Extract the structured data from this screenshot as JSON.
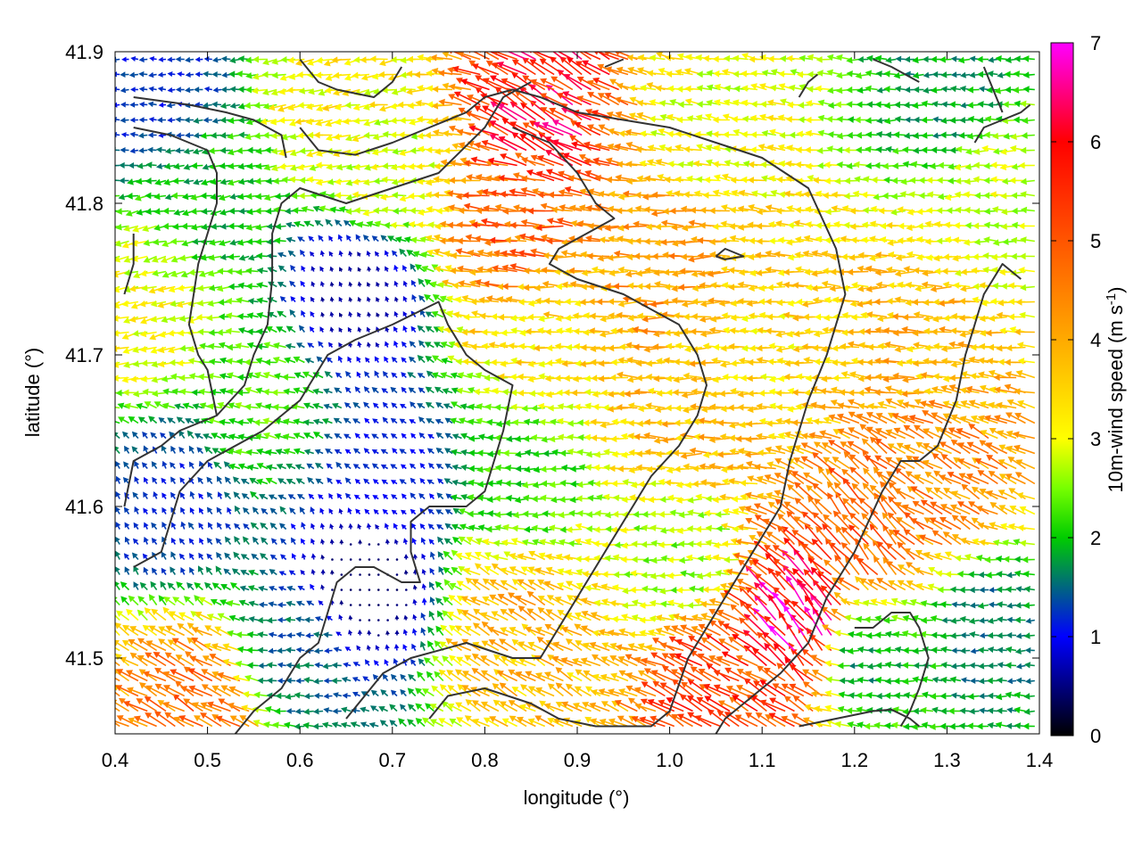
{
  "chart_data": {
    "type": "quiver",
    "xlabel": "longitude (°)",
    "ylabel": "latitude (°)",
    "colorbar_label": "10m-wind speed (m s",
    "colorbar_label_sup": "-1",
    "colorbar_label_end": ")",
    "xlim": [
      0.4,
      1.4
    ],
    "ylim": [
      41.45,
      41.9
    ],
    "x_ticks": [
      {
        "value": 0.4,
        "label": "0.4"
      },
      {
        "value": 0.5,
        "label": "0.5"
      },
      {
        "value": 0.6,
        "label": "0.6"
      },
      {
        "value": 0.7,
        "label": "0.7"
      },
      {
        "value": 0.8,
        "label": "0.8"
      },
      {
        "value": 0.9,
        "label": "0.9"
      },
      {
        "value": 1.0,
        "label": "1.0"
      },
      {
        "value": 1.1,
        "label": "1.1"
      },
      {
        "value": 1.2,
        "label": "1.2"
      },
      {
        "value": 1.3,
        "label": "1.3"
      },
      {
        "value": 1.4,
        "label": "1.4"
      }
    ],
    "y_ticks": [
      {
        "value": 41.5,
        "label": "41.5"
      },
      {
        "value": 41.6,
        "label": "41.6"
      },
      {
        "value": 41.7,
        "label": "41.7"
      },
      {
        "value": 41.8,
        "label": "41.8"
      },
      {
        "value": 41.9,
        "label": "41.9"
      }
    ],
    "colorbar": {
      "min": 0,
      "max": 7,
      "ticks": [
        {
          "value": 0,
          "label": "0"
        },
        {
          "value": 1,
          "label": "1"
        },
        {
          "value": 2,
          "label": "2"
        },
        {
          "value": 3,
          "label": "3"
        },
        {
          "value": 4,
          "label": "4"
        },
        {
          "value": 5,
          "label": "5"
        },
        {
          "value": 6,
          "label": "6"
        },
        {
          "value": 7,
          "label": "7"
        }
      ],
      "stops": [
        {
          "value": 0,
          "color": "#000000"
        },
        {
          "value": 1,
          "color": "#0000ff"
        },
        {
          "value": 2,
          "color": "#00cc00"
        },
        {
          "value": 2.5,
          "color": "#77ff00"
        },
        {
          "value": 3,
          "color": "#ffff00"
        },
        {
          "value": 4,
          "color": "#ffaa00"
        },
        {
          "value": 5,
          "color": "#ff5500"
        },
        {
          "value": 6,
          "color": "#ff0000"
        },
        {
          "value": 7,
          "color": "#ff00ff"
        }
      ]
    },
    "wind_field_grid": {
      "lon_start": 0.405,
      "lon_end": 1.395,
      "lon_step": 0.01,
      "lat_start": 41.455,
      "lat_end": 41.895,
      "lat_step": 0.01
    },
    "wind_regions": [
      {
        "lon": 0.44,
        "lat": 41.73,
        "speed": 3.0,
        "direction_deg": 195
      },
      {
        "lon": 0.45,
        "lat": 41.88,
        "speed": 1.2,
        "direction_deg": 180
      },
      {
        "lon": 0.52,
        "lat": 41.8,
        "speed": 2.0,
        "direction_deg": 190
      },
      {
        "lon": 0.47,
        "lat": 41.6,
        "speed": 1.2,
        "direction_deg": 120
      },
      {
        "lon": 0.56,
        "lat": 41.67,
        "speed": 2.3,
        "direction_deg": 170
      },
      {
        "lon": 0.65,
        "lat": 41.86,
        "speed": 3.2,
        "direction_deg": 190
      },
      {
        "lon": 0.7,
        "lat": 41.82,
        "speed": 2.8,
        "direction_deg": 185
      },
      {
        "lon": 0.66,
        "lat": 41.74,
        "speed": 0.6,
        "direction_deg": 110
      },
      {
        "lon": 0.7,
        "lat": 41.62,
        "speed": 1.1,
        "direction_deg": 140
      },
      {
        "lon": 0.67,
        "lat": 41.55,
        "speed": 0.4,
        "direction_deg": 90
      },
      {
        "lon": 0.6,
        "lat": 41.5,
        "speed": 1.5,
        "direction_deg": 180
      },
      {
        "lon": 0.5,
        "lat": 41.465,
        "speed": 4.6,
        "direction_deg": 150
      },
      {
        "lon": 0.87,
        "lat": 41.86,
        "speed": 5.8,
        "direction_deg": 150
      },
      {
        "lon": 0.85,
        "lat": 41.78,
        "speed": 4.8,
        "direction_deg": 175
      },
      {
        "lon": 0.88,
        "lat": 41.72,
        "speed": 3.4,
        "direction_deg": 180
      },
      {
        "lon": 0.85,
        "lat": 41.62,
        "speed": 2.2,
        "direction_deg": 180
      },
      {
        "lon": 0.84,
        "lat": 41.52,
        "speed": 3.8,
        "direction_deg": 150
      },
      {
        "lon": 1.0,
        "lat": 41.76,
        "speed": 4.2,
        "direction_deg": 180
      },
      {
        "lon": 1.03,
        "lat": 41.66,
        "speed": 3.8,
        "direction_deg": 180
      },
      {
        "lon": 1.05,
        "lat": 41.85,
        "speed": 3.0,
        "direction_deg": 170
      },
      {
        "lon": 1.12,
        "lat": 41.7,
        "speed": 3.4,
        "direction_deg": 180
      },
      {
        "lon": 1.02,
        "lat": 41.57,
        "speed": 2.6,
        "direction_deg": 180
      },
      {
        "lon": 1.15,
        "lat": 41.52,
        "speed": 6.4,
        "direction_deg": 130
      },
      {
        "lon": 1.07,
        "lat": 41.48,
        "speed": 5.2,
        "direction_deg": 150
      },
      {
        "lon": 1.22,
        "lat": 41.58,
        "speed": 4.8,
        "direction_deg": 130
      },
      {
        "lon": 1.3,
        "lat": 41.61,
        "speed": 4.4,
        "direction_deg": 150
      },
      {
        "lon": 1.22,
        "lat": 41.5,
        "speed": 1.8,
        "direction_deg": 180
      },
      {
        "lon": 1.28,
        "lat": 41.72,
        "speed": 3.8,
        "direction_deg": 180
      },
      {
        "lon": 1.35,
        "lat": 41.8,
        "speed": 2.8,
        "direction_deg": 180
      },
      {
        "lon": 1.3,
        "lat": 41.87,
        "speed": 1.8,
        "direction_deg": 180
      },
      {
        "lon": 1.35,
        "lat": 41.52,
        "speed": 1.6,
        "direction_deg": 180
      }
    ],
    "contours": [
      [
        [
          0.42,
          41.87
        ],
        [
          0.48,
          41.865
        ],
        [
          0.52,
          41.86
        ],
        [
          0.55,
          41.855
        ],
        [
          0.58,
          41.845
        ],
        [
          0.585,
          41.83
        ]
      ],
      [
        [
          0.42,
          41.85
        ],
        [
          0.46,
          41.845
        ],
        [
          0.5,
          41.835
        ],
        [
          0.51,
          41.82
        ],
        [
          0.51,
          41.8
        ],
        [
          0.5,
          41.78
        ],
        [
          0.49,
          41.76
        ],
        [
          0.485,
          41.74
        ],
        [
          0.48,
          41.72
        ],
        [
          0.49,
          41.7
        ],
        [
          0.5,
          41.69
        ],
        [
          0.51,
          41.66
        ]
      ],
      [
        [
          0.41,
          41.6
        ],
        [
          0.42,
          41.63
        ],
        [
          0.45,
          41.64
        ],
        [
          0.47,
          41.65
        ],
        [
          0.51,
          41.66
        ],
        [
          0.54,
          41.68
        ],
        [
          0.55,
          41.7
        ],
        [
          0.565,
          41.72
        ],
        [
          0.57,
          41.75
        ],
        [
          0.57,
          41.78
        ],
        [
          0.58,
          41.8
        ],
        [
          0.6,
          41.81
        ],
        [
          0.65,
          41.8
        ],
        [
          0.7,
          41.81
        ],
        [
          0.75,
          41.82
        ],
        [
          0.8,
          41.85
        ],
        [
          0.82,
          41.87
        ],
        [
          0.85,
          41.88
        ]
      ],
      [
        [
          0.41,
          41.74
        ],
        [
          0.42,
          41.76
        ],
        [
          0.42,
          41.78
        ]
      ],
      [
        [
          0.42,
          41.56
        ],
        [
          0.45,
          41.57
        ],
        [
          0.47,
          41.61
        ],
        [
          0.5,
          41.63
        ],
        [
          0.56,
          41.65
        ],
        [
          0.6,
          41.67
        ],
        [
          0.63,
          41.7
        ],
        [
          0.66,
          41.71
        ],
        [
          0.7,
          41.72
        ],
        [
          0.75,
          41.735
        ],
        [
          0.76,
          41.72
        ],
        [
          0.78,
          41.7
        ],
        [
          0.8,
          41.69
        ],
        [
          0.83,
          41.68
        ],
        [
          0.82,
          41.65
        ],
        [
          0.8,
          41.61
        ],
        [
          0.78,
          41.6
        ],
        [
          0.74,
          41.6
        ],
        [
          0.72,
          41.59
        ],
        [
          0.72,
          41.57
        ],
        [
          0.73,
          41.55
        ],
        [
          0.71,
          41.55
        ],
        [
          0.68,
          41.56
        ],
        [
          0.66,
          41.56
        ],
        [
          0.64,
          41.55
        ],
        [
          0.63,
          41.53
        ],
        [
          0.62,
          41.51
        ],
        [
          0.6,
          41.5
        ],
        [
          0.58,
          41.48
        ],
        [
          0.55,
          41.465
        ],
        [
          0.53,
          41.45
        ]
      ],
      [
        [
          0.6,
          41.895
        ],
        [
          0.62,
          41.88
        ],
        [
          0.64,
          41.875
        ],
        [
          0.68,
          41.87
        ],
        [
          0.7,
          41.88
        ],
        [
          0.71,
          41.89
        ]
      ],
      [
        [
          0.6,
          41.85
        ],
        [
          0.62,
          41.835
        ],
        [
          0.66,
          41.832
        ],
        [
          0.7,
          41.84
        ],
        [
          0.74,
          41.85
        ],
        [
          0.78,
          41.86
        ],
        [
          0.8,
          41.87
        ],
        [
          0.83,
          41.875
        ],
        [
          0.86,
          41.87
        ],
        [
          0.9,
          41.86
        ],
        [
          0.95,
          41.855
        ],
        [
          1.0,
          41.85
        ],
        [
          1.05,
          41.84
        ],
        [
          1.1,
          41.83
        ],
        [
          1.15,
          41.81
        ],
        [
          1.18,
          41.77
        ],
        [
          1.19,
          41.74
        ],
        [
          1.17,
          41.7
        ],
        [
          1.15,
          41.67
        ],
        [
          1.13,
          41.63
        ],
        [
          1.12,
          41.6
        ],
        [
          1.1,
          41.58
        ],
        [
          1.08,
          41.56
        ],
        [
          1.05,
          41.53
        ],
        [
          1.02,
          41.5
        ],
        [
          1.0,
          41.465
        ],
        [
          0.98,
          41.455
        ],
        [
          0.92,
          41.455
        ],
        [
          0.88,
          41.46
        ],
        [
          0.85,
          41.47
        ],
        [
          0.8,
          41.48
        ],
        [
          0.76,
          41.475
        ],
        [
          0.74,
          41.46
        ]
      ],
      [
        [
          0.83,
          41.85
        ],
        [
          0.87,
          41.84
        ],
        [
          0.9,
          41.82
        ],
        [
          0.92,
          41.8
        ],
        [
          0.94,
          41.79
        ],
        [
          0.91,
          41.78
        ],
        [
          0.88,
          41.77
        ],
        [
          0.87,
          41.76
        ],
        [
          0.9,
          41.75
        ],
        [
          0.95,
          41.74
        ],
        [
          0.98,
          41.73
        ],
        [
          1.01,
          41.72
        ],
        [
          1.03,
          41.7
        ],
        [
          1.04,
          41.68
        ],
        [
          1.03,
          41.66
        ],
        [
          1.01,
          41.64
        ],
        [
          0.98,
          41.62
        ],
        [
          0.96,
          41.6
        ],
        [
          0.94,
          41.58
        ],
        [
          0.92,
          41.56
        ],
        [
          0.9,
          41.54
        ],
        [
          0.88,
          41.52
        ],
        [
          0.86,
          41.5
        ],
        [
          0.83,
          41.5
        ],
        [
          0.78,
          41.51
        ],
        [
          0.72,
          41.5
        ],
        [
          0.69,
          41.49
        ],
        [
          0.67,
          41.475
        ],
        [
          0.65,
          41.46
        ]
      ],
      [
        [
          1.05,
          41.765
        ],
        [
          1.06,
          41.77
        ],
        [
          1.08,
          41.765
        ],
        [
          1.06,
          41.763
        ],
        [
          1.05,
          41.765
        ]
      ],
      [
        [
          1.14,
          41.87
        ],
        [
          1.15,
          41.88
        ],
        [
          1.16,
          41.885
        ]
      ],
      [
        [
          1.38,
          41.75
        ],
        [
          1.36,
          41.76
        ],
        [
          1.34,
          41.74
        ],
        [
          1.33,
          41.72
        ],
        [
          1.32,
          41.7
        ],
        [
          1.31,
          41.67
        ],
        [
          1.29,
          41.64
        ],
        [
          1.27,
          41.63
        ],
        [
          1.25,
          41.63
        ],
        [
          1.23,
          41.61
        ],
        [
          1.2,
          41.57
        ],
        [
          1.17,
          41.54
        ],
        [
          1.15,
          41.51
        ],
        [
          1.12,
          41.49
        ],
        [
          1.08,
          41.47
        ],
        [
          1.06,
          41.46
        ],
        [
          1.05,
          41.45
        ]
      ],
      [
        [
          1.2,
          41.52
        ],
        [
          1.22,
          41.52
        ],
        [
          1.24,
          41.53
        ],
        [
          1.26,
          41.53
        ],
        [
          1.27,
          41.52
        ],
        [
          1.28,
          41.5
        ],
        [
          1.27,
          41.48
        ],
        [
          1.26,
          41.465
        ],
        [
          1.25,
          41.455
        ]
      ],
      [
        [
          1.14,
          41.455
        ],
        [
          1.18,
          41.46
        ],
        [
          1.22,
          41.465
        ],
        [
          1.24,
          41.466
        ],
        [
          1.26,
          41.46
        ],
        [
          1.27,
          41.455
        ]
      ],
      [
        [
          1.33,
          41.84
        ],
        [
          1.34,
          41.85
        ],
        [
          1.36,
          41.855
        ],
        [
          1.38,
          41.86
        ],
        [
          1.39,
          41.865
        ]
      ],
      [
        [
          1.34,
          41.89
        ],
        [
          1.35,
          41.875
        ],
        [
          1.36,
          41.86
        ]
      ],
      [
        [
          0.93,
          41.89
        ],
        [
          0.95,
          41.895
        ]
      ],
      [
        [
          1.22,
          41.895
        ],
        [
          1.24,
          41.89
        ],
        [
          1.27,
          41.88
        ]
      ]
    ]
  }
}
